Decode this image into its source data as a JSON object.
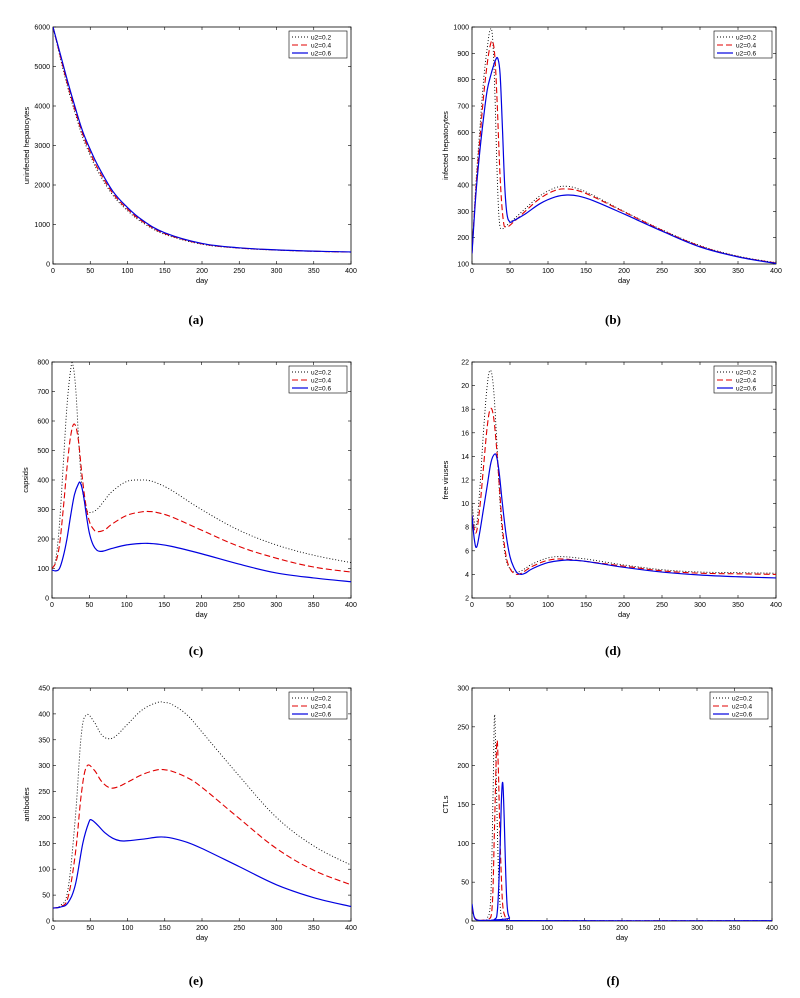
{
  "colors": {
    "u02": "#000000",
    "u04": "#e00000",
    "u06": "#0000e0"
  },
  "chart_data": [
    {
      "type": "line",
      "caption": "(a)",
      "xlabel": "day",
      "ylabel": "uninfected hepatocytes",
      "xlim": [
        0,
        400
      ],
      "ylim": [
        0,
        6000
      ],
      "xticks": [
        0,
        50,
        100,
        150,
        200,
        250,
        300,
        350,
        400
      ],
      "yticks": [
        0,
        1000,
        2000,
        3000,
        4000,
        5000,
        6000
      ],
      "legend": [
        "u2=0.2",
        "u2=0.4",
        "u2=0.6"
      ],
      "series": [
        {
          "name": "u2=0.2",
          "x": [
            0,
            10,
            20,
            30,
            40,
            50,
            60,
            80,
            100,
            120,
            150,
            200,
            250,
            300,
            350,
            400
          ],
          "y": [
            6000,
            5200,
            4450,
            3800,
            3200,
            2750,
            2350,
            1750,
            1350,
            1050,
            750,
            500,
            400,
            350,
            320,
            300
          ]
        },
        {
          "name": "u2=0.4",
          "x": [
            0,
            10,
            20,
            30,
            40,
            50,
            60,
            80,
            100,
            120,
            150,
            200,
            250,
            300,
            350,
            400
          ],
          "y": [
            6000,
            5250,
            4520,
            3870,
            3280,
            2820,
            2420,
            1800,
            1390,
            1080,
            770,
            510,
            405,
            355,
            322,
            302
          ]
        },
        {
          "name": "u2=0.6",
          "x": [
            0,
            10,
            20,
            30,
            40,
            50,
            60,
            80,
            100,
            120,
            150,
            200,
            250,
            300,
            350,
            400
          ],
          "y": [
            6000,
            5300,
            4600,
            3950,
            3350,
            2900,
            2500,
            1850,
            1430,
            1110,
            790,
            520,
            410,
            358,
            325,
            305
          ]
        }
      ]
    },
    {
      "type": "line",
      "caption": "(b)",
      "xlabel": "day",
      "ylabel": "infected hepatocytes",
      "xlim": [
        0,
        400
      ],
      "ylim": [
        100,
        1000
      ],
      "xticks": [
        0,
        50,
        100,
        150,
        200,
        250,
        300,
        350,
        400
      ],
      "yticks": [
        100,
        200,
        300,
        400,
        500,
        600,
        700,
        800,
        900,
        1000
      ],
      "legend": [
        "u2=0.2",
        "u2=0.4",
        "u2=0.6"
      ],
      "series": [
        {
          "name": "u2=0.2",
          "x": [
            0,
            5,
            10,
            15,
            20,
            24,
            27,
            30,
            33,
            36,
            40,
            45,
            55,
            70,
            90,
            110,
            125,
            140,
            160,
            200,
            250,
            300,
            350,
            400
          ],
          "y": [
            140,
            400,
            600,
            790,
            920,
            990,
            960,
            760,
            450,
            260,
            235,
            245,
            270,
            310,
            360,
            390,
            395,
            385,
            360,
            300,
            230,
            170,
            130,
            105
          ]
        },
        {
          "name": "u2=0.4",
          "x": [
            0,
            5,
            10,
            15,
            20,
            24,
            27,
            30,
            33,
            37,
            41,
            45,
            55,
            70,
            90,
            110,
            125,
            140,
            160,
            200,
            250,
            300,
            350,
            400
          ],
          "y": [
            140,
            380,
            560,
            730,
            860,
            930,
            945,
            890,
            720,
            430,
            270,
            240,
            260,
            300,
            350,
            380,
            385,
            378,
            355,
            298,
            228,
            168,
            128,
            104
          ]
        },
        {
          "name": "u2=0.6",
          "x": [
            0,
            5,
            10,
            15,
            20,
            25,
            28,
            31,
            34,
            37,
            40,
            43,
            46,
            50,
            55,
            70,
            90,
            110,
            125,
            140,
            160,
            200,
            250,
            300,
            350,
            400
          ],
          "y": [
            140,
            360,
            520,
            650,
            760,
            820,
            850,
            875,
            880,
            820,
            620,
            400,
            290,
            260,
            265,
            290,
            330,
            355,
            362,
            358,
            340,
            290,
            225,
            165,
            127,
            102
          ]
        }
      ]
    },
    {
      "type": "line",
      "caption": "(c)",
      "xlabel": "day",
      "ylabel": "capsids",
      "xlim": [
        0,
        400
      ],
      "ylim": [
        0,
        800
      ],
      "xticks": [
        0,
        50,
        100,
        150,
        200,
        250,
        300,
        350,
        400
      ],
      "yticks": [
        0,
        100,
        200,
        300,
        400,
        500,
        600,
        700,
        800
      ],
      "legend": [
        "u2=0.2",
        "u2=0.4",
        "u2=0.6"
      ],
      "series": [
        {
          "name": "u2=0.2",
          "x": [
            0,
            5,
            10,
            15,
            20,
            25,
            28,
            32,
            36,
            40,
            45,
            50,
            60,
            70,
            80,
            100,
            120,
            130,
            140,
            160,
            200,
            250,
            300,
            350,
            400
          ],
          "y": [
            100,
            130,
            250,
            450,
            650,
            775,
            790,
            700,
            520,
            380,
            310,
            290,
            300,
            330,
            360,
            395,
            400,
            398,
            390,
            365,
            300,
            230,
            180,
            145,
            120
          ]
        },
        {
          "name": "u2=0.4",
          "x": [
            0,
            5,
            10,
            15,
            20,
            25,
            30,
            35,
            40,
            45,
            50,
            55,
            60,
            70,
            80,
            100,
            120,
            130,
            140,
            160,
            200,
            250,
            300,
            350,
            400
          ],
          "y": [
            100,
            120,
            180,
            300,
            440,
            550,
            590,
            540,
            420,
            320,
            260,
            235,
            225,
            230,
            250,
            280,
            292,
            293,
            290,
            275,
            230,
            175,
            135,
            105,
            88
          ]
        },
        {
          "name": "u2=0.6",
          "x": [
            0,
            5,
            10,
            15,
            20,
            25,
            30,
            35,
            38,
            42,
            46,
            50,
            55,
            60,
            65,
            70,
            80,
            100,
            120,
            130,
            140,
            160,
            200,
            250,
            300,
            350,
            400
          ],
          "y": [
            95,
            92,
            100,
            140,
            200,
            280,
            350,
            385,
            390,
            350,
            280,
            220,
            180,
            162,
            158,
            160,
            168,
            180,
            185,
            185,
            183,
            175,
            150,
            115,
            85,
            68,
            55
          ]
        }
      ]
    },
    {
      "type": "line",
      "caption": "(d)",
      "xlabel": "day",
      "ylabel": "free viruses",
      "xlim": [
        0,
        400
      ],
      "ylim": [
        2,
        22
      ],
      "xticks": [
        0,
        50,
        100,
        150,
        200,
        250,
        300,
        350,
        400
      ],
      "yticks": [
        2,
        4,
        6,
        8,
        10,
        12,
        14,
        16,
        18,
        20,
        22
      ],
      "legend": [
        "u2=0.2",
        "u2=0.4",
        "u2=0.6"
      ],
      "series": [
        {
          "name": "u2=0.2",
          "x": [
            0,
            5,
            10,
            15,
            20,
            24,
            28,
            32,
            36,
            40,
            45,
            50,
            55,
            60,
            65,
            70,
            80,
            100,
            120,
            150,
            200,
            250,
            300,
            350,
            400
          ],
          "y": [
            10,
            8,
            11,
            16,
            20,
            21.3,
            20,
            16,
            11,
            7.5,
            5.2,
            4.5,
            4.2,
            4.2,
            4.3,
            4.5,
            4.9,
            5.4,
            5.5,
            5.3,
            4.8,
            4.4,
            4.2,
            4.15,
            4.1
          ]
        },
        {
          "name": "u2=0.4",
          "x": [
            0,
            5,
            10,
            15,
            20,
            24,
            28,
            32,
            36,
            40,
            45,
            50,
            55,
            60,
            65,
            70,
            80,
            100,
            120,
            150,
            200,
            250,
            300,
            350,
            400
          ],
          "y": [
            9,
            7.5,
            9.5,
            13,
            16.5,
            18,
            17.5,
            15,
            11.5,
            8,
            5.5,
            4.5,
            4.1,
            4.0,
            4.1,
            4.3,
            4.7,
            5.2,
            5.3,
            5.1,
            4.7,
            4.3,
            4.1,
            4.05,
            4.0
          ]
        },
        {
          "name": "u2=0.6",
          "x": [
            0,
            3,
            6,
            10,
            15,
            20,
            25,
            30,
            33,
            36,
            40,
            45,
            50,
            55,
            60,
            65,
            70,
            80,
            100,
            120,
            130,
            150,
            200,
            250,
            300,
            350,
            400
          ],
          "y": [
            9,
            7,
            6.3,
            7.5,
            9.5,
            11.5,
            13.5,
            14.2,
            13.8,
            12.5,
            10,
            7.3,
            5.5,
            4.6,
            4.1,
            4.0,
            4.1,
            4.5,
            5.0,
            5.2,
            5.2,
            5.1,
            4.6,
            4.2,
            3.95,
            3.8,
            3.7
          ]
        }
      ]
    },
    {
      "type": "line",
      "caption": "(e)",
      "xlabel": "day",
      "ylabel": "antibodies",
      "xlim": [
        0,
        400
      ],
      "ylim": [
        0,
        450
      ],
      "xticks": [
        0,
        50,
        100,
        150,
        200,
        250,
        300,
        350,
        400
      ],
      "yticks": [
        0,
        50,
        100,
        150,
        200,
        250,
        300,
        350,
        400,
        450
      ],
      "legend": [
        "u2=0.2",
        "u2=0.4",
        "u2=0.6"
      ],
      "series": [
        {
          "name": "u2=0.2",
          "x": [
            0,
            10,
            20,
            30,
            38,
            45,
            55,
            65,
            75,
            85,
            100,
            120,
            140,
            150,
            160,
            180,
            200,
            250,
            300,
            350,
            400
          ],
          "y": [
            25,
            30,
            60,
            200,
            360,
            398,
            385,
            360,
            352,
            358,
            380,
            408,
            422,
            422,
            418,
            398,
            365,
            280,
            200,
            145,
            108
          ]
        },
        {
          "name": "u2=0.4",
          "x": [
            0,
            10,
            20,
            30,
            38,
            45,
            55,
            65,
            75,
            85,
            100,
            120,
            140,
            150,
            160,
            180,
            200,
            250,
            300,
            350,
            400
          ],
          "y": [
            25,
            28,
            45,
            130,
            245,
            298,
            292,
            270,
            258,
            258,
            268,
            283,
            292,
            292,
            289,
            277,
            258,
            198,
            140,
            98,
            70
          ]
        },
        {
          "name": "u2=0.6",
          "x": [
            0,
            10,
            20,
            30,
            40,
            48,
            52,
            60,
            70,
            80,
            90,
            100,
            120,
            140,
            150,
            160,
            180,
            200,
            250,
            300,
            350,
            400
          ],
          "y": [
            25,
            27,
            35,
            70,
            150,
            190,
            195,
            185,
            170,
            160,
            155,
            155,
            158,
            162,
            162,
            160,
            152,
            140,
            105,
            70,
            45,
            28
          ]
        }
      ]
    },
    {
      "type": "line",
      "caption": "(f)",
      "xlabel": "day",
      "ylabel": "CTLs",
      "xlim": [
        0,
        400
      ],
      "ylim": [
        0,
        300
      ],
      "xticks": [
        0,
        50,
        100,
        150,
        200,
        250,
        300,
        350,
        400
      ],
      "yticks": [
        0,
        50,
        100,
        150,
        200,
        250,
        300
      ],
      "legend": [
        "u2=0.2",
        "u2=0.4",
        "u2=0.6"
      ],
      "series": [
        {
          "name": "u2=0.2",
          "x": [
            0,
            3,
            8,
            15,
            20,
            25,
            28,
            30,
            32,
            34,
            36,
            38,
            40,
            45,
            55,
            400
          ],
          "y": [
            18,
            5,
            1,
            1,
            3,
            30,
            160,
            265,
            200,
            110,
            45,
            15,
            4,
            1,
            0.3,
            0.3
          ]
        },
        {
          "name": "u2=0.4",
          "x": [
            0,
            3,
            8,
            15,
            22,
            27,
            30,
            33,
            35,
            37,
            39,
            41,
            44,
            48,
            55,
            400
          ],
          "y": [
            18,
            5,
            1,
            1,
            2,
            20,
            120,
            228,
            200,
            120,
            60,
            20,
            6,
            1,
            0.3,
            0.3
          ]
        },
        {
          "name": "u2=0.6",
          "x": [
            0,
            3,
            8,
            20,
            30,
            34,
            37,
            39,
            41,
            43,
            45,
            47,
            50,
            55,
            400
          ],
          "y": [
            22,
            5,
            1,
            1,
            2,
            15,
            80,
            150,
            178,
            130,
            60,
            18,
            4,
            0.5,
            0.3
          ]
        }
      ]
    }
  ]
}
